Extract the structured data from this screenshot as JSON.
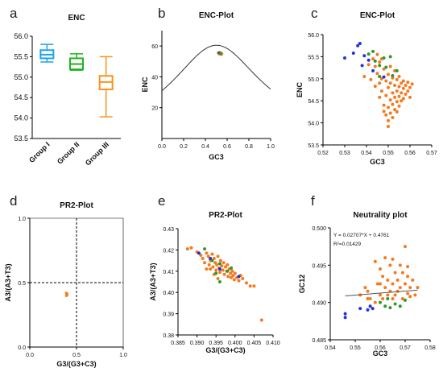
{
  "figure": {
    "panel_letters": [
      "a",
      "b",
      "c",
      "d",
      "e",
      "f"
    ]
  },
  "colors": {
    "group1": "#1aa3e8",
    "group2": "#1fb41f",
    "group3": "#f7941d",
    "blue_points": "#1f35d6",
    "green_points": "#2e9a2e",
    "orange_points": "#f47a20",
    "curve": "#333333"
  },
  "chart_data": [
    {
      "panel": "a",
      "type": "box",
      "title": "ENC",
      "categories": [
        "Group I",
        "Group II",
        "Group III"
      ],
      "ylim": [
        53.5,
        56.0
      ],
      "yticks": [
        "53.5",
        "54.0",
        "54.5",
        "55.0",
        "55.5",
        "56.0"
      ],
      "boxes": [
        {
          "name": "Group I",
          "min": 55.37,
          "q1": 55.46,
          "median": 55.55,
          "q3": 55.66,
          "max": 55.8
        },
        {
          "name": "Group II",
          "min": 55.17,
          "q1": 55.19,
          "median": 55.32,
          "q3": 55.46,
          "max": 55.57
        },
        {
          "name": "Group III",
          "min": 54.03,
          "q1": 54.7,
          "median": 54.88,
          "q3": 55.03,
          "max": 55.5
        }
      ]
    },
    {
      "panel": "b",
      "type": "scatter",
      "title": "ENC-Plot",
      "xlabel": "GC3",
      "ylabel": "ENC",
      "xlim": [
        0.0,
        1.0
      ],
      "ylim": [
        0,
        70
      ],
      "xticks": [
        "0.0",
        "0.2",
        "0.4",
        "0.6",
        "0.8",
        "1.0"
      ],
      "yticks": [
        "20",
        "40",
        "60"
      ],
      "curve": "ENC = 2 + GC3 + 29/(GC3^2 + (1-GC3)^2)",
      "points": [
        {
          "x": 0.52,
          "y": 55.5,
          "group": "orange"
        },
        {
          "x": 0.53,
          "y": 54.9,
          "group": "orange"
        },
        {
          "x": 0.54,
          "y": 55.2,
          "group": "orange"
        },
        {
          "x": 0.545,
          "y": 54.6,
          "group": "orange"
        },
        {
          "x": 0.55,
          "y": 55.0,
          "group": "orange"
        },
        {
          "x": 0.53,
          "y": 55.6,
          "group": "blue"
        },
        {
          "x": 0.54,
          "y": 55.3,
          "group": "green"
        }
      ]
    },
    {
      "panel": "c",
      "type": "scatter",
      "title": "ENC-Plot",
      "xlabel": "GC3",
      "ylabel": "ENC",
      "xlim": [
        0.52,
        0.57
      ],
      "ylim": [
        53.5,
        56.0
      ],
      "xticks": [
        "0.52",
        "0.53",
        "0.54",
        "0.55",
        "0.56",
        "0.57"
      ],
      "yticks": [
        "53.5",
        "54.0",
        "54.5",
        "55.0",
        "55.5",
        "56.0"
      ],
      "series": [
        {
          "name": "",
          "group": "blue",
          "points": [
            [
              0.53,
              55.47
            ],
            [
              0.534,
              55.58
            ],
            [
              0.536,
              55.75
            ],
            [
              0.537,
              55.8
            ],
            [
              0.539,
              55.52
            ],
            [
              0.538,
              55.3
            ],
            [
              0.541,
              55.42
            ],
            [
              0.543,
              55.18
            ],
            [
              0.548,
              55.04
            ]
          ]
        },
        {
          "name": "",
          "group": "green",
          "points": [
            [
              0.541,
              55.56
            ],
            [
              0.543,
              55.62
            ],
            [
              0.544,
              55.4
            ],
            [
              0.546,
              55.3
            ],
            [
              0.548,
              55.47
            ],
            [
              0.549,
              55.26
            ],
            [
              0.551,
              55.5
            ],
            [
              0.552,
              55.07
            ],
            [
              0.554,
              55.18
            ],
            [
              0.546,
              55.05
            ]
          ]
        },
        {
          "name": "",
          "group": "orange",
          "points": [
            [
              0.539,
              55.05
            ],
            [
              0.541,
              55.32
            ],
            [
              0.542,
              54.98
            ],
            [
              0.543,
              55.45
            ],
            [
              0.544,
              55.28
            ],
            [
              0.544,
              54.83
            ],
            [
              0.545,
              55.12
            ],
            [
              0.545,
              55.55
            ],
            [
              0.546,
              55.38
            ],
            [
              0.546,
              54.58
            ],
            [
              0.547,
              55.0
            ],
            [
              0.547,
              54.72
            ],
            [
              0.548,
              55.22
            ],
            [
              0.548,
              54.4
            ],
            [
              0.549,
              54.95
            ],
            [
              0.549,
              54.62
            ],
            [
              0.549,
              54.18
            ],
            [
              0.55,
              55.1
            ],
            [
              0.55,
              54.8
            ],
            [
              0.55,
              54.35
            ],
            [
              0.55,
              54.05
            ],
            [
              0.551,
              55.28
            ],
            [
              0.551,
              54.9
            ],
            [
              0.551,
              54.52
            ],
            [
              0.551,
              54.22
            ],
            [
              0.552,
              55.02
            ],
            [
              0.552,
              54.68
            ],
            [
              0.552,
              54.42
            ],
            [
              0.553,
              55.18
            ],
            [
              0.553,
              54.85
            ],
            [
              0.553,
              54.58
            ],
            [
              0.553,
              54.3
            ],
            [
              0.554,
              54.98
            ],
            [
              0.554,
              54.72
            ],
            [
              0.554,
              54.48
            ],
            [
              0.555,
              55.05
            ],
            [
              0.555,
              54.82
            ],
            [
              0.555,
              54.6
            ],
            [
              0.555,
              54.38
            ],
            [
              0.556,
              54.9
            ],
            [
              0.556,
              54.68
            ],
            [
              0.556,
              54.5
            ],
            [
              0.557,
              54.95
            ],
            [
              0.557,
              54.78
            ],
            [
              0.557,
              54.55
            ],
            [
              0.558,
              54.85
            ],
            [
              0.558,
              54.65
            ],
            [
              0.559,
              54.92
            ],
            [
              0.559,
              54.72
            ],
            [
              0.56,
              54.8
            ],
            [
              0.56,
              54.58
            ],
            [
              0.561,
              54.88
            ],
            [
              0.552,
              54.12
            ],
            [
              0.55,
              53.92
            ],
            [
              0.548,
              54.26
            ],
            [
              0.546,
              54.9
            ],
            [
              0.554,
              54.25
            ],
            [
              0.547,
              55.45
            ]
          ]
        }
      ]
    },
    {
      "panel": "d",
      "type": "scatter",
      "title": "PR2-Plot",
      "xlabel": "G3/(G3+C3)",
      "ylabel": "A3/(A3+T3)",
      "xlim": [
        0.0,
        1.0
      ],
      "ylim": [
        0.0,
        1.0
      ],
      "xticks": [
        "0.0",
        "0.5",
        "1.0"
      ],
      "yticks": [
        "0.0",
        "0.5",
        "1.0"
      ],
      "reference_lines": {
        "x": 0.5,
        "y": 0.5
      },
      "points": [
        {
          "x": 0.39,
          "y": 0.42,
          "group": "orange"
        },
        {
          "x": 0.395,
          "y": 0.41,
          "group": "orange"
        },
        {
          "x": 0.4,
          "y": 0.405,
          "group": "orange"
        },
        {
          "x": 0.392,
          "y": 0.398,
          "group": "orange"
        },
        {
          "x": 0.398,
          "y": 0.416,
          "group": "orange"
        }
      ]
    },
    {
      "panel": "e",
      "type": "scatter",
      "title": "PR2-Plot",
      "xlabel": "G3/(G3+C3)",
      "ylabel": "A3/(A3+T3)",
      "xlim": [
        0.385,
        0.41
      ],
      "ylim": [
        0.38,
        0.43
      ],
      "xticks": [
        "0.385",
        "0.390",
        "0.395",
        "0.400",
        "0.405",
        "0.410"
      ],
      "yticks": [
        "0.38",
        "0.39",
        "0.40",
        "0.41",
        "0.42",
        "0.43"
      ],
      "series": [
        {
          "name": "",
          "group": "blue",
          "points": [
            [
              0.3905,
              0.4185
            ],
            [
              0.3935,
              0.416
            ],
            [
              0.401,
              0.4075
            ],
            [
              0.396,
              0.411
            ]
          ]
        },
        {
          "name": "",
          "group": "green",
          "points": [
            [
              0.392,
              0.4205
            ],
            [
              0.394,
              0.415
            ],
            [
              0.396,
              0.4135
            ],
            [
              0.398,
              0.41
            ],
            [
              0.399,
              0.4115
            ],
            [
              0.396,
              0.405
            ],
            [
              0.395,
              0.409
            ]
          ]
        },
        {
          "name": "",
          "group": "orange",
          "points": [
            [
              0.3875,
              0.4205
            ],
            [
              0.3885,
              0.421
            ],
            [
              0.39,
              0.419
            ],
            [
              0.391,
              0.4175
            ],
            [
              0.3915,
              0.416
            ],
            [
              0.392,
              0.414
            ],
            [
              0.3925,
              0.4185
            ],
            [
              0.393,
              0.417
            ],
            [
              0.3932,
              0.413
            ],
            [
              0.3935,
              0.415
            ],
            [
              0.394,
              0.418
            ],
            [
              0.3942,
              0.412
            ],
            [
              0.3945,
              0.416
            ],
            [
              0.3948,
              0.414
            ],
            [
              0.395,
              0.4105
            ],
            [
              0.3952,
              0.413
            ],
            [
              0.3955,
              0.417
            ],
            [
              0.3958,
              0.4115
            ],
            [
              0.396,
              0.4095
            ],
            [
              0.3962,
              0.415
            ],
            [
              0.3965,
              0.4125
            ],
            [
              0.3968,
              0.4105
            ],
            [
              0.397,
              0.414
            ],
            [
              0.3972,
              0.4085
            ],
            [
              0.3975,
              0.412
            ],
            [
              0.3978,
              0.41
            ],
            [
              0.398,
              0.413
            ],
            [
              0.3982,
              0.4075
            ],
            [
              0.3985,
              0.411
            ],
            [
              0.3988,
              0.409
            ],
            [
              0.399,
              0.407
            ],
            [
              0.3993,
              0.41
            ],
            [
              0.3995,
              0.408
            ],
            [
              0.3998,
              0.406
            ],
            [
              0.4,
              0.409
            ],
            [
              0.4005,
              0.407
            ],
            [
              0.401,
              0.4055
            ],
            [
              0.4015,
              0.408
            ],
            [
              0.402,
              0.4065
            ],
            [
              0.403,
              0.4045
            ],
            [
              0.404,
              0.403
            ],
            [
              0.405,
              0.403
            ],
            [
              0.407,
              0.387
            ],
            [
              0.3955,
              0.4065
            ],
            [
              0.3945,
              0.4085
            ],
            [
              0.3935,
              0.411
            ],
            [
              0.3925,
              0.411
            ]
          ]
        }
      ]
    },
    {
      "panel": "f",
      "type": "scatter",
      "title": "Neutrality plot",
      "xlabel": "GC3",
      "ylabel": "GC12",
      "xlim": [
        0.54,
        0.58
      ],
      "ylim": [
        0.485,
        0.5
      ],
      "xticks": [
        "0.54",
        "0.55",
        "0.56",
        "0.57",
        "0.58"
      ],
      "yticks": [
        "0.485",
        "0.490",
        "0.495",
        "0.500"
      ],
      "equation": "Y = 0.02707*X + 0.4761",
      "r2_label": "R²=0.01429",
      "regression": {
        "slope": 0.02707,
        "intercept": 0.4761,
        "x_range": [
          0.546,
          0.575
        ]
      },
      "series": [
        {
          "name": "",
          "group": "blue",
          "points": [
            [
              0.546,
              0.488
            ],
            [
              0.546,
              0.4885
            ],
            [
              0.552,
              0.4892
            ],
            [
              0.555,
              0.489
            ],
            [
              0.557,
              0.4892
            ],
            [
              0.556,
              0.4895
            ]
          ]
        },
        {
          "name": "",
          "group": "green",
          "points": [
            [
              0.56,
              0.49
            ],
            [
              0.562,
              0.4895
            ],
            [
              0.564,
              0.4893
            ],
            [
              0.566,
              0.4898
            ],
            [
              0.568,
              0.4895
            ],
            [
              0.57,
              0.4903
            ],
            [
              0.563,
              0.4905
            ]
          ]
        },
        {
          "name": "",
          "group": "orange",
          "points": [
            [
              0.552,
              0.491
            ],
            [
              0.554,
              0.492
            ],
            [
              0.555,
              0.4915
            ],
            [
              0.556,
              0.4905
            ],
            [
              0.558,
              0.4955
            ],
            [
              0.558,
              0.49
            ],
            [
              0.559,
              0.4925
            ],
            [
              0.56,
              0.4945
            ],
            [
              0.56,
              0.491
            ],
            [
              0.561,
              0.4935
            ],
            [
              0.561,
              0.4905
            ],
            [
              0.562,
              0.496
            ],
            [
              0.562,
              0.492
            ],
            [
              0.563,
              0.493
            ],
            [
              0.563,
              0.491
            ],
            [
              0.564,
              0.495
            ],
            [
              0.564,
              0.4915
            ],
            [
              0.565,
              0.4925
            ],
            [
              0.565,
              0.4905
            ],
            [
              0.566,
              0.494
            ],
            [
              0.566,
              0.491
            ],
            [
              0.567,
              0.493
            ],
            [
              0.567,
              0.4915
            ],
            [
              0.568,
              0.495
            ],
            [
              0.568,
              0.492
            ],
            [
              0.569,
              0.494
            ],
            [
              0.569,
              0.4905
            ],
            [
              0.57,
              0.4975
            ],
            [
              0.57,
              0.4925
            ],
            [
              0.571,
              0.4935
            ],
            [
              0.571,
              0.4912
            ],
            [
              0.572,
              0.492
            ],
            [
              0.573,
              0.493
            ],
            [
              0.574,
              0.491
            ],
            [
              0.575,
              0.492
            ],
            [
              0.565,
              0.4958
            ],
            [
              0.56,
              0.4925
            ],
            [
              0.555,
              0.4905
            ],
            [
              0.571,
              0.4948
            ],
            [
              0.572,
              0.4908
            ]
          ]
        }
      ]
    }
  ]
}
